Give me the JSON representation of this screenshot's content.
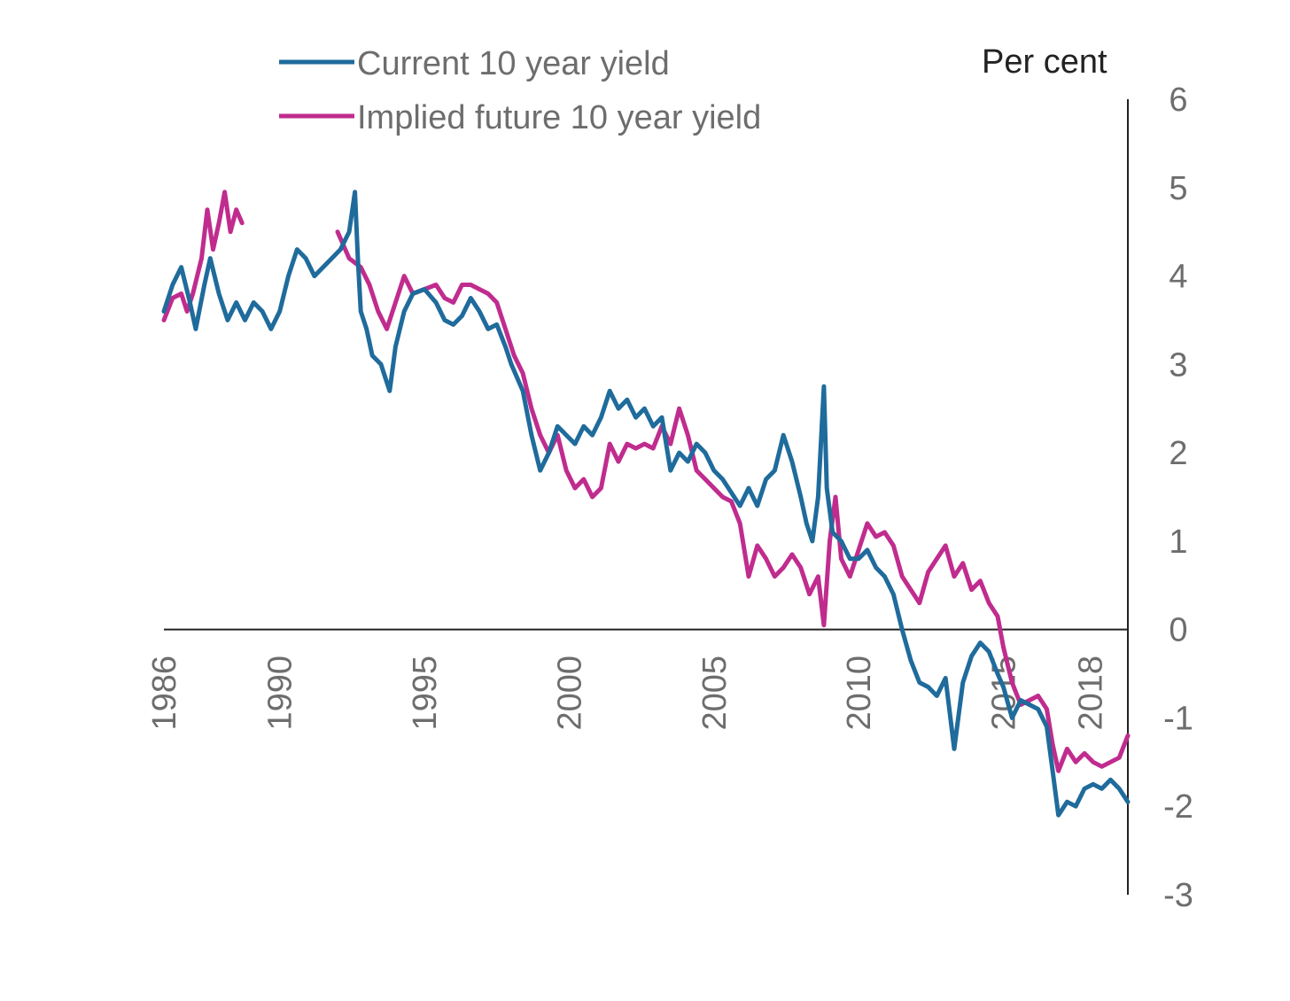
{
  "chart_data": {
    "type": "line",
    "unit_label": "Per cent",
    "x_ticks": [
      "1986",
      "1990",
      "1995",
      "2000",
      "2005",
      "2010",
      "2015",
      "2018"
    ],
    "y_ticks": [
      "6",
      "5",
      "4",
      "3",
      "2",
      "1",
      "0",
      "-1",
      "-2",
      "-3"
    ],
    "xlim": [
      1986,
      2019.3
    ],
    "ylim": [
      -3,
      6
    ],
    "y_axis_position": "right",
    "grid": false,
    "legend_position": "top-left",
    "colors": {
      "current": "#1f6b9c",
      "implied": "#c02c8e",
      "axis": "#222222",
      "text": "#6d6d6d"
    },
    "series": [
      {
        "name": "Current 10 year yield",
        "key": "current",
        "points": [
          [
            1986.0,
            3.6
          ],
          [
            1986.3,
            3.9
          ],
          [
            1986.6,
            4.1
          ],
          [
            1986.9,
            3.7
          ],
          [
            1987.1,
            3.4
          ],
          [
            1987.4,
            3.9
          ],
          [
            1987.6,
            4.2
          ],
          [
            1987.9,
            3.8
          ],
          [
            1988.2,
            3.5
          ],
          [
            1988.5,
            3.7
          ],
          [
            1988.8,
            3.5
          ],
          [
            1989.1,
            3.7
          ],
          [
            1989.4,
            3.6
          ],
          [
            1989.7,
            3.4
          ],
          [
            1990.0,
            3.6
          ],
          [
            1990.3,
            4.0
          ],
          [
            1990.6,
            4.3
          ],
          [
            1990.9,
            4.2
          ],
          [
            1991.2,
            4.0
          ],
          [
            1991.5,
            4.1
          ],
          [
            1991.8,
            4.2
          ],
          [
            1992.1,
            4.3
          ],
          [
            1992.4,
            4.5
          ],
          [
            1992.6,
            4.95
          ],
          [
            1992.7,
            4.2
          ],
          [
            1992.8,
            3.6
          ],
          [
            1993.0,
            3.4
          ],
          [
            1993.2,
            3.1
          ],
          [
            1993.5,
            3.0
          ],
          [
            1993.8,
            2.7
          ],
          [
            1994.0,
            3.2
          ],
          [
            1994.3,
            3.6
          ],
          [
            1994.6,
            3.8
          ],
          [
            1995.0,
            3.85
          ],
          [
            1995.4,
            3.7
          ],
          [
            1995.7,
            3.5
          ],
          [
            1996.0,
            3.45
          ],
          [
            1996.3,
            3.55
          ],
          [
            1996.6,
            3.75
          ],
          [
            1996.9,
            3.6
          ],
          [
            1997.2,
            3.4
          ],
          [
            1997.5,
            3.45
          ],
          [
            1997.8,
            3.2
          ],
          [
            1998.0,
            3.0
          ],
          [
            1998.4,
            2.7
          ],
          [
            1998.7,
            2.2
          ],
          [
            1999.0,
            1.8
          ],
          [
            1999.3,
            2.0
          ],
          [
            1999.6,
            2.3
          ],
          [
            1999.9,
            2.2
          ],
          [
            2000.2,
            2.1
          ],
          [
            2000.5,
            2.3
          ],
          [
            2000.8,
            2.2
          ],
          [
            2001.1,
            2.4
          ],
          [
            2001.4,
            2.7
          ],
          [
            2001.7,
            2.5
          ],
          [
            2002.0,
            2.6
          ],
          [
            2002.3,
            2.4
          ],
          [
            2002.6,
            2.5
          ],
          [
            2002.9,
            2.3
          ],
          [
            2003.2,
            2.4
          ],
          [
            2003.5,
            1.8
          ],
          [
            2003.8,
            2.0
          ],
          [
            2004.1,
            1.9
          ],
          [
            2004.4,
            2.1
          ],
          [
            2004.7,
            2.0
          ],
          [
            2005.0,
            1.8
          ],
          [
            2005.3,
            1.7
          ],
          [
            2005.6,
            1.55
          ],
          [
            2005.9,
            1.4
          ],
          [
            2006.2,
            1.6
          ],
          [
            2006.5,
            1.4
          ],
          [
            2006.8,
            1.7
          ],
          [
            2007.1,
            1.8
          ],
          [
            2007.4,
            2.2
          ],
          [
            2007.7,
            1.9
          ],
          [
            2008.0,
            1.5
          ],
          [
            2008.2,
            1.2
          ],
          [
            2008.4,
            1.0
          ],
          [
            2008.6,
            1.5
          ],
          [
            2008.8,
            2.75
          ],
          [
            2008.9,
            1.6
          ],
          [
            2009.1,
            1.1
          ],
          [
            2009.4,
            1.0
          ],
          [
            2009.7,
            0.8
          ],
          [
            2010.0,
            0.8
          ],
          [
            2010.3,
            0.9
          ],
          [
            2010.6,
            0.7
          ],
          [
            2010.9,
            0.6
          ],
          [
            2011.2,
            0.4
          ],
          [
            2011.5,
            0.0
          ],
          [
            2011.8,
            -0.35
          ],
          [
            2012.1,
            -0.6
          ],
          [
            2012.4,
            -0.65
          ],
          [
            2012.7,
            -0.75
          ],
          [
            2013.0,
            -0.55
          ],
          [
            2013.3,
            -1.35
          ],
          [
            2013.6,
            -0.6
          ],
          [
            2013.9,
            -0.3
          ],
          [
            2014.2,
            -0.15
          ],
          [
            2014.5,
            -0.25
          ],
          [
            2014.8,
            -0.5
          ],
          [
            2015.0,
            -0.65
          ],
          [
            2015.3,
            -1.0
          ],
          [
            2015.6,
            -0.8
          ],
          [
            2015.9,
            -0.85
          ],
          [
            2016.2,
            -0.9
          ],
          [
            2016.5,
            -1.1
          ],
          [
            2016.7,
            -1.6
          ],
          [
            2016.9,
            -2.1
          ],
          [
            2017.2,
            -1.95
          ],
          [
            2017.5,
            -2.0
          ],
          [
            2017.8,
            -1.8
          ],
          [
            2018.1,
            -1.75
          ],
          [
            2018.4,
            -1.8
          ],
          [
            2018.7,
            -1.7
          ],
          [
            2019.0,
            -1.8
          ],
          [
            2019.3,
            -1.95
          ]
        ]
      },
      {
        "name": "Implied future 10 year yield",
        "key": "implied",
        "points": [
          [
            1986.0,
            3.5
          ],
          [
            1986.3,
            3.75
          ],
          [
            1986.6,
            3.8
          ],
          [
            1986.8,
            3.6
          ],
          [
            1987.0,
            3.8
          ],
          [
            1987.3,
            4.2
          ],
          [
            1987.5,
            4.75
          ],
          [
            1987.7,
            4.3
          ],
          [
            1987.9,
            4.6
          ],
          [
            1988.1,
            4.95
          ],
          [
            1988.3,
            4.5
          ],
          [
            1988.5,
            4.75
          ],
          [
            1988.7,
            4.6
          ],
          null,
          [
            1992.0,
            4.5
          ],
          [
            1992.4,
            4.2
          ],
          [
            1992.8,
            4.1
          ],
          [
            1993.1,
            3.9
          ],
          [
            1993.4,
            3.6
          ],
          [
            1993.7,
            3.4
          ],
          [
            1994.0,
            3.7
          ],
          [
            1994.3,
            4.0
          ],
          [
            1994.6,
            3.8
          ],
          [
            1995.0,
            3.85
          ],
          [
            1995.4,
            3.9
          ],
          [
            1995.7,
            3.75
          ],
          [
            1996.0,
            3.7
          ],
          [
            1996.3,
            3.9
          ],
          [
            1996.6,
            3.9
          ],
          [
            1996.9,
            3.85
          ],
          [
            1997.2,
            3.8
          ],
          [
            1997.5,
            3.7
          ],
          [
            1997.8,
            3.4
          ],
          [
            1998.1,
            3.1
          ],
          [
            1998.4,
            2.9
          ],
          [
            1998.7,
            2.5
          ],
          [
            1999.0,
            2.2
          ],
          [
            1999.3,
            2.0
          ],
          [
            1999.6,
            2.2
          ],
          [
            1999.9,
            1.8
          ],
          [
            2000.2,
            1.6
          ],
          [
            2000.5,
            1.7
          ],
          [
            2000.8,
            1.5
          ],
          [
            2001.1,
            1.6
          ],
          [
            2001.4,
            2.1
          ],
          [
            2001.7,
            1.9
          ],
          [
            2002.0,
            2.1
          ],
          [
            2002.3,
            2.05
          ],
          [
            2002.6,
            2.1
          ],
          [
            2002.9,
            2.05
          ],
          [
            2003.2,
            2.3
          ],
          [
            2003.5,
            2.1
          ],
          [
            2003.8,
            2.5
          ],
          [
            2004.1,
            2.2
          ],
          [
            2004.4,
            1.8
          ],
          [
            2004.7,
            1.7
          ],
          [
            2005.0,
            1.6
          ],
          [
            2005.3,
            1.5
          ],
          [
            2005.6,
            1.45
          ],
          [
            2005.9,
            1.2
          ],
          [
            2006.2,
            0.6
          ],
          [
            2006.5,
            0.95
          ],
          [
            2006.8,
            0.8
          ],
          [
            2007.1,
            0.6
          ],
          [
            2007.4,
            0.7
          ],
          [
            2007.7,
            0.85
          ],
          [
            2008.0,
            0.7
          ],
          [
            2008.3,
            0.4
          ],
          [
            2008.6,
            0.6
          ],
          [
            2008.8,
            0.05
          ],
          [
            2009.0,
            1.0
          ],
          [
            2009.2,
            1.5
          ],
          [
            2009.4,
            0.8
          ],
          [
            2009.7,
            0.6
          ],
          [
            2010.0,
            0.9
          ],
          [
            2010.3,
            1.2
          ],
          [
            2010.6,
            1.05
          ],
          [
            2010.9,
            1.1
          ],
          [
            2011.2,
            0.95
          ],
          [
            2011.5,
            0.6
          ],
          [
            2011.8,
            0.45
          ],
          [
            2012.1,
            0.3
          ],
          [
            2012.4,
            0.65
          ],
          [
            2012.7,
            0.8
          ],
          [
            2013.0,
            0.95
          ],
          [
            2013.3,
            0.6
          ],
          [
            2013.6,
            0.75
          ],
          [
            2013.9,
            0.45
          ],
          [
            2014.2,
            0.55
          ],
          [
            2014.5,
            0.3
          ],
          [
            2014.8,
            0.15
          ],
          [
            2015.0,
            -0.2
          ],
          [
            2015.3,
            -0.6
          ],
          [
            2015.6,
            -0.85
          ],
          [
            2015.9,
            -0.8
          ],
          [
            2016.2,
            -0.75
          ],
          [
            2016.5,
            -0.9
          ],
          [
            2016.7,
            -1.3
          ],
          [
            2016.9,
            -1.6
          ],
          [
            2017.2,
            -1.35
          ],
          [
            2017.5,
            -1.5
          ],
          [
            2017.8,
            -1.4
          ],
          [
            2018.1,
            -1.5
          ],
          [
            2018.4,
            -1.55
          ],
          [
            2018.7,
            -1.5
          ],
          [
            2019.0,
            -1.45
          ],
          [
            2019.3,
            -1.2
          ]
        ]
      }
    ]
  }
}
